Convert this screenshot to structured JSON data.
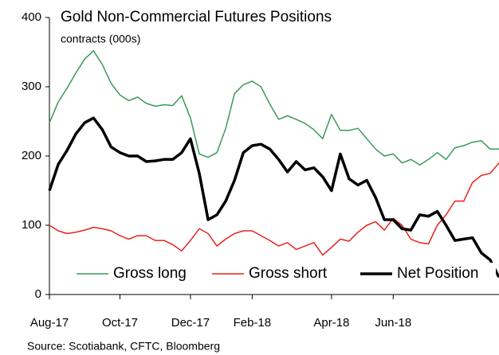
{
  "chart_data": {
    "type": "line",
    "title": "Gold Non-Commercial Futures Positions",
    "subtitle": "contracts (000s)",
    "source": "Source: Scotiabank, CFTC, Bloomberg",
    "categories": [
      "Aug-17",
      null,
      null,
      null,
      null,
      null,
      null,
      null,
      "Oct-17",
      null,
      null,
      null,
      null,
      null,
      null,
      null,
      "Dec-17",
      null,
      null,
      null,
      null,
      null,
      null,
      "Feb-18",
      null,
      null,
      null,
      null,
      null,
      null,
      null,
      null,
      "Apr-18",
      null,
      null,
      null,
      null,
      null,
      null,
      "Jun-18",
      null,
      null,
      null,
      null,
      null,
      null,
      null,
      null,
      null,
      null,
      null,
      null
    ],
    "series": [
      {
        "name": "Gross long",
        "color": "#3a9a5a",
        "values": [
          248,
          278,
          298,
          320,
          340,
          352,
          332,
          305,
          288,
          280,
          285,
          276,
          272,
          274,
          273,
          287,
          255,
          203,
          198,
          205,
          240,
          290,
          303,
          308,
          300,
          275,
          253,
          258,
          253,
          247,
          238,
          225,
          260,
          237,
          237,
          240,
          225,
          210,
          200,
          203,
          190,
          195,
          187,
          195,
          205,
          195,
          212,
          215,
          220,
          222,
          210,
          210
        ]
      },
      {
        "name": "Gross short",
        "color": "#e8231c",
        "values": [
          100,
          92,
          88,
          90,
          93,
          97,
          95,
          92,
          85,
          80,
          85,
          85,
          78,
          78,
          72,
          63,
          78,
          95,
          88,
          70,
          80,
          88,
          92,
          92,
          85,
          78,
          70,
          75,
          65,
          70,
          75,
          57,
          68,
          80,
          77,
          90,
          100,
          105,
          93,
          110,
          100,
          80,
          75,
          73,
          100,
          115,
          135,
          135,
          162,
          172,
          175,
          190
        ]
      },
      {
        "name": "Net Position",
        "color": "#000000",
        "values": [
          150,
          188,
          208,
          232,
          248,
          255,
          238,
          213,
          205,
          200,
          200,
          192,
          193,
          195,
          195,
          205,
          225,
          175,
          108,
          115,
          135,
          165,
          205,
          215,
          217,
          210,
          195,
          177,
          192,
          180,
          183,
          170,
          150,
          203,
          167,
          158,
          165,
          140,
          108,
          108,
          95,
          93,
          115,
          113,
          120,
          100,
          78,
          80,
          82,
          60,
          50,
          25
        ]
      }
    ],
    "ylim": [
      0,
      400
    ],
    "yticks": [
      0,
      100,
      200,
      300,
      400
    ],
    "grid": false,
    "legend": "bottom"
  }
}
